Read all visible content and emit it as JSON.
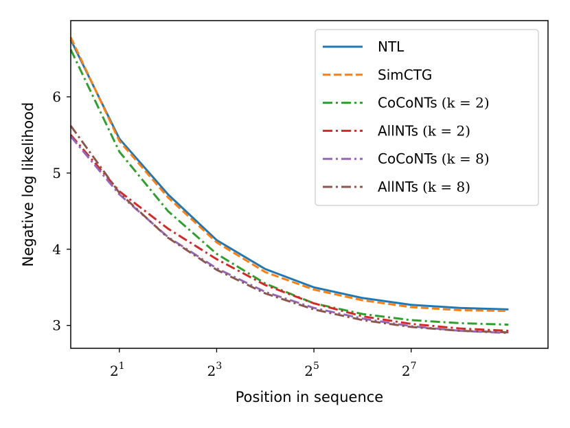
{
  "chart_data": {
    "type": "line",
    "xlabel": "Position in sequence",
    "ylabel": "Negative log likelihood",
    "x_scale": "log2",
    "xlim": [
      1,
      900
    ],
    "ylim": [
      2.7,
      7.0
    ],
    "x_ticks": [
      {
        "base": "2",
        "exp": "1",
        "value": 2
      },
      {
        "base": "2",
        "exp": "3",
        "value": 8
      },
      {
        "base": "2",
        "exp": "5",
        "value": 32
      },
      {
        "base": "2",
        "exp": "7",
        "value": 128
      }
    ],
    "y_ticks": [
      3,
      4,
      5,
      6
    ],
    "legend_position": "top-right",
    "grid": false,
    "x": [
      1,
      2,
      4,
      8,
      16,
      32,
      64,
      128,
      256,
      512
    ],
    "series": [
      {
        "name": "NTL",
        "name_math": "",
        "color": "#1f77b4",
        "dash": "solid",
        "values": [
          6.75,
          5.45,
          4.72,
          4.12,
          3.74,
          3.5,
          3.36,
          3.27,
          3.23,
          3.21
        ]
      },
      {
        "name": "SimCTG",
        "name_math": "",
        "color": "#ff7f0e",
        "dash": "dashed",
        "values": [
          6.78,
          5.42,
          4.68,
          4.09,
          3.7,
          3.47,
          3.33,
          3.24,
          3.2,
          3.19
        ]
      },
      {
        "name": "CoCoNTs",
        "name_math": "(k = 2)",
        "color": "#2ca02c",
        "dash": "dashdot",
        "values": [
          6.62,
          5.28,
          4.5,
          3.94,
          3.55,
          3.29,
          3.15,
          3.07,
          3.03,
          3.01
        ]
      },
      {
        "name": "AllNTs",
        "name_math": "(k = 2)",
        "color": "#d62728",
        "dash": "dashdot",
        "values": [
          5.5,
          4.76,
          4.27,
          3.87,
          3.53,
          3.29,
          3.12,
          3.02,
          2.96,
          2.93
        ]
      },
      {
        "name": "CoCoNTs",
        "name_math": "(k = 8)",
        "color": "#9467bd",
        "dash": "dashdot",
        "values": [
          5.48,
          4.72,
          4.16,
          3.75,
          3.44,
          3.23,
          3.09,
          2.99,
          2.93,
          2.9
        ]
      },
      {
        "name": "AllNTs",
        "name_math": "(k = 8)",
        "color": "#8c564b",
        "dash": "dashdot",
        "values": [
          5.62,
          4.74,
          4.15,
          3.73,
          3.42,
          3.21,
          3.07,
          2.98,
          2.93,
          2.91
        ]
      }
    ]
  }
}
